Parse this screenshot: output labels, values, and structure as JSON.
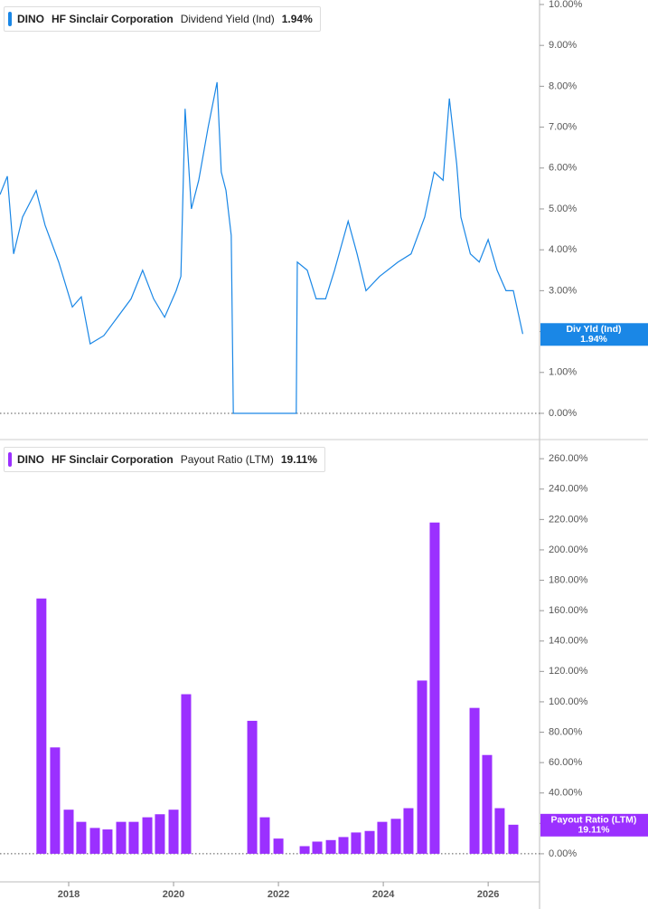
{
  "chart_data": [
    {
      "type": "line",
      "ticker": "DINO",
      "company": "HF Sinclair Corporation",
      "metric": "Dividend Yield (Ind)",
      "last_value_label": "1.94%",
      "badge_label": "Div Yld (Ind)",
      "x": [
        2016.69,
        2016.83,
        2016.95,
        2017.12,
        2017.38,
        2017.55,
        2017.81,
        2018.07,
        2018.24,
        2018.41,
        2018.67,
        2018.93,
        2019.19,
        2019.41,
        2019.62,
        2019.83,
        2020.05,
        2020.14,
        2020.22,
        2020.34,
        2020.48,
        2020.66,
        2020.83,
        2020.91,
        2021.0,
        2021.1,
        2021.14,
        2022.34,
        2022.36,
        2022.55,
        2022.72,
        2022.9,
        2023.07,
        2023.33,
        2023.5,
        2023.67,
        2023.93,
        2024.28,
        2024.53,
        2024.79,
        2024.97,
        2025.14,
        2025.26,
        2025.4,
        2025.48,
        2025.66,
        2025.83,
        2026.0,
        2026.17,
        2026.34,
        2026.48,
        2026.66
      ],
      "values": [
        5.35,
        5.8,
        3.9,
        4.8,
        5.45,
        4.6,
        3.7,
        2.6,
        2.85,
        1.7,
        1.9,
        2.35,
        2.8,
        3.5,
        2.8,
        2.35,
        3.0,
        3.35,
        7.45,
        5.0,
        5.7,
        7.0,
        8.1,
        5.9,
        5.45,
        4.35,
        0,
        0,
        3.7,
        3.5,
        2.8,
        2.8,
        3.5,
        4.7,
        3.9,
        3.0,
        3.35,
        3.7,
        3.9,
        4.8,
        5.9,
        5.7,
        7.7,
        6.1,
        4.8,
        3.9,
        3.7,
        4.25,
        3.5,
        3.0,
        3.0,
        1.94
      ],
      "color": "#1a87e6",
      "xlim": [
        2016.69,
        2026.98
      ],
      "ylim": [
        -0.62,
        10.11
      ],
      "yticks": [
        {
          "value": 0,
          "label": "0.00%"
        },
        {
          "value": 1,
          "label": "1.00%"
        },
        {
          "value": 2,
          "label": "2.00%"
        },
        {
          "value": 3,
          "label": "3.00%"
        },
        {
          "value": 4,
          "label": "4.00%"
        },
        {
          "value": 5,
          "label": "5.00%"
        },
        {
          "value": 6,
          "label": "6.00%"
        },
        {
          "value": 7,
          "label": "7.00%"
        },
        {
          "value": 8,
          "label": "8.00%"
        },
        {
          "value": 9,
          "label": "9.00%"
        },
        {
          "value": 10,
          "label": "10.00%"
        }
      ]
    },
    {
      "type": "bar",
      "ticker": "DINO",
      "company": "HF Sinclair Corporation",
      "metric": "Payout Ratio (LTM)",
      "last_value_label": "19.11%",
      "badge_label": "Payout Ratio (LTM)",
      "x": [
        2017.48,
        2017.74,
        2018.0,
        2018.24,
        2018.5,
        2018.74,
        2019.0,
        2019.24,
        2019.5,
        2019.74,
        2020.0,
        2020.24,
        2021.5,
        2021.74,
        2022.0,
        2022.5,
        2022.74,
        2023.0,
        2023.24,
        2023.48,
        2023.74,
        2023.98,
        2024.24,
        2024.48,
        2024.74,
        2024.98,
        2025.74,
        2025.98,
        2026.22,
        2026.48
      ],
      "values": [
        168,
        70,
        29,
        21,
        17,
        16,
        21,
        21,
        24,
        26,
        29,
        105,
        87.5,
        24,
        10,
        5,
        8,
        9,
        11,
        14,
        15,
        21,
        23,
        30,
        114,
        218,
        96,
        65,
        30,
        19.11
      ],
      "color": "#9b30ff",
      "xlim": [
        2016.69,
        2026.98
      ],
      "xticks": [
        2018,
        2020,
        2022,
        2024,
        2026
      ],
      "ylim": [
        -18.5,
        272
      ],
      "yticks": [
        {
          "value": 0,
          "label": "0.00%"
        },
        {
          "value": 20,
          "label": "20.00%"
        },
        {
          "value": 40,
          "label": "40.00%"
        },
        {
          "value": 60,
          "label": "60.00%"
        },
        {
          "value": 80,
          "label": "80.00%"
        },
        {
          "value": 100,
          "label": "100.00%"
        },
        {
          "value": 120,
          "label": "120.00%"
        },
        {
          "value": 140,
          "label": "140.00%"
        },
        {
          "value": 160,
          "label": "160.00%"
        },
        {
          "value": 180,
          "label": "180.00%"
        },
        {
          "value": 200,
          "label": "200.00%"
        },
        {
          "value": 220,
          "label": "220.00%"
        },
        {
          "value": 240,
          "label": "240.00%"
        },
        {
          "value": 260,
          "label": "260.00%"
        }
      ]
    }
  ]
}
